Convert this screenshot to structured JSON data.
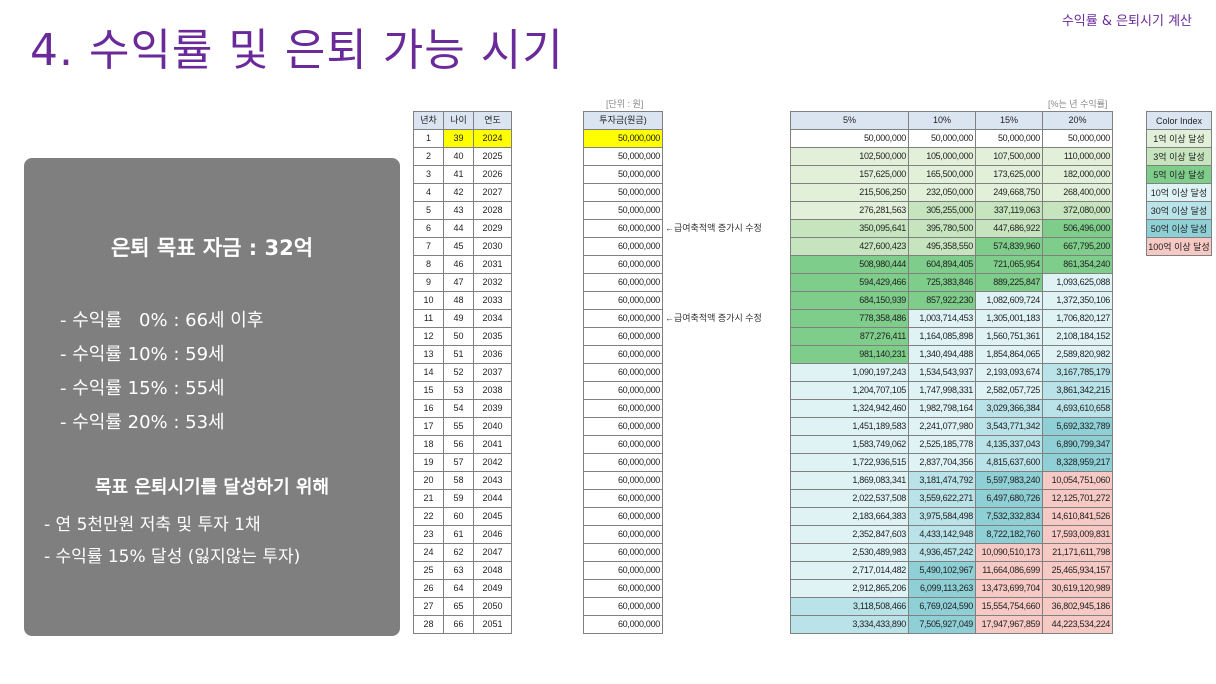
{
  "title": "4. 수익률 및 은퇴 가능 시기",
  "tag": "수익률 & 은퇴시기 계산",
  "summary": {
    "goal": "은퇴 목표 자금 : 32억",
    "rates": [
      "- 수익률   0% : 66세 이후",
      "- 수익률 10% : 59세",
      "- 수익률 15% : 55세",
      "- 수익률 20% : 53세"
    ],
    "plan_title": "목표 은퇴시기를 달성하기 위해",
    "plan": [
      "- 연 5천만원 저축 및 투자 1채",
      "- 수익률 15% 달성 (잃지않는 투자)"
    ]
  },
  "table_year": {
    "headers": [
      "년차",
      "나이",
      "연도"
    ],
    "highlight_row": 0,
    "highlight_color": "#ffff00",
    "rows": [
      [
        "1",
        "39",
        "2024"
      ],
      [
        "2",
        "40",
        "2025"
      ],
      [
        "3",
        "41",
        "2026"
      ],
      [
        "4",
        "42",
        "2027"
      ],
      [
        "5",
        "43",
        "2028"
      ],
      [
        "6",
        "44",
        "2029"
      ],
      [
        "7",
        "45",
        "2030"
      ],
      [
        "8",
        "46",
        "2031"
      ],
      [
        "9",
        "47",
        "2032"
      ],
      [
        "10",
        "48",
        "2033"
      ],
      [
        "11",
        "49",
        "2034"
      ],
      [
        "12",
        "50",
        "2035"
      ],
      [
        "13",
        "51",
        "2036"
      ],
      [
        "14",
        "52",
        "2037"
      ],
      [
        "15",
        "53",
        "2038"
      ],
      [
        "16",
        "54",
        "2039"
      ],
      [
        "17",
        "55",
        "2040"
      ],
      [
        "18",
        "56",
        "2041"
      ],
      [
        "19",
        "57",
        "2042"
      ],
      [
        "20",
        "58",
        "2043"
      ],
      [
        "21",
        "59",
        "2044"
      ],
      [
        "22",
        "60",
        "2045"
      ],
      [
        "23",
        "61",
        "2046"
      ],
      [
        "24",
        "62",
        "2047"
      ],
      [
        "25",
        "63",
        "2048"
      ],
      [
        "26",
        "64",
        "2049"
      ],
      [
        "27",
        "65",
        "2050"
      ],
      [
        "28",
        "66",
        "2051"
      ]
    ]
  },
  "table_invest": {
    "caption": "[단위 : 원]",
    "header": "투자금(원금)",
    "highlight_color": "#ffff00",
    "values": [
      "50,000,000",
      "50,000,000",
      "50,000,000",
      "50,000,000",
      "50,000,000",
      "60,000,000",
      "60,000,000",
      "60,000,000",
      "60,000,000",
      "60,000,000",
      "60,000,000",
      "60,000,000",
      "60,000,000",
      "60,000,000",
      "60,000,000",
      "60,000,000",
      "60,000,000",
      "60,000,000",
      "60,000,000",
      "60,000,000",
      "60,000,000",
      "60,000,000",
      "60,000,000",
      "60,000,000",
      "60,000,000",
      "60,000,000",
      "60,000,000",
      "60,000,000"
    ],
    "notes": [
      {
        "row": 5,
        "text": "←급여축적액 증가시 수정"
      },
      {
        "row": 10,
        "text": "←급여축적액 증가시 수정"
      }
    ]
  },
  "table_returns": {
    "caption": "[%는 년 수익률]",
    "headers": [
      "5%",
      "10%",
      "15%",
      "20%"
    ],
    "rows": [
      [
        "50,000,000",
        "50,000,000",
        "50,000,000",
        "50,000,000"
      ],
      [
        "102,500,000",
        "105,000,000",
        "107,500,000",
        "110,000,000"
      ],
      [
        "157,625,000",
        "165,500,000",
        "173,625,000",
        "182,000,000"
      ],
      [
        "215,506,250",
        "232,050,000",
        "249,668,750",
        "268,400,000"
      ],
      [
        "276,281,563",
        "305,255,000",
        "337,119,063",
        "372,080,000"
      ],
      [
        "350,095,641",
        "395,780,500",
        "447,686,922",
        "506,496,000"
      ],
      [
        "427,600,423",
        "495,358,550",
        "574,839,960",
        "667,795,200"
      ],
      [
        "508,980,444",
        "604,894,405",
        "721,065,954",
        "861,354,240"
      ],
      [
        "594,429,466",
        "725,383,846",
        "889,225,847",
        "1,093,625,088"
      ],
      [
        "684,150,939",
        "857,922,230",
        "1,082,609,724",
        "1,372,350,106"
      ],
      [
        "778,358,486",
        "1,003,714,453",
        "1,305,001,183",
        "1,706,820,127"
      ],
      [
        "877,276,411",
        "1,164,085,898",
        "1,560,751,361",
        "2,108,184,152"
      ],
      [
        "981,140,231",
        "1,340,494,488",
        "1,854,864,065",
        "2,589,820,982"
      ],
      [
        "1,090,197,243",
        "1,534,543,937",
        "2,193,093,674",
        "3,167,785,179"
      ],
      [
        "1,204,707,105",
        "1,747,998,331",
        "2,582,057,725",
        "3,861,342,215"
      ],
      [
        "1,324,942,460",
        "1,982,798,164",
        "3,029,366,384",
        "4,693,610,658"
      ],
      [
        "1,451,189,583",
        "2,241,077,980",
        "3,543,771,342",
        "5,692,332,789"
      ],
      [
        "1,583,749,062",
        "2,525,185,778",
        "4,135,337,043",
        "6,890,799,347"
      ],
      [
        "1,722,936,515",
        "2,837,704,356",
        "4,815,637,600",
        "8,328,959,217"
      ],
      [
        "1,869,083,341",
        "3,181,474,792",
        "5,597,983,240",
        "10,054,751,060"
      ],
      [
        "2,022,537,508",
        "3,559,622,271",
        "6,497,680,726",
        "12,125,701,272"
      ],
      [
        "2,183,664,383",
        "3,975,584,498",
        "7,532,332,834",
        "14,610,841,526"
      ],
      [
        "2,352,847,603",
        "4,433,142,948",
        "8,722,182,760",
        "17,593,009,831"
      ],
      [
        "2,530,489,983",
        "4,936,457,242",
        "10,090,510,173",
        "21,171,611,798"
      ],
      [
        "2,717,014,482",
        "5,490,102,967",
        "11,664,086,699",
        "25,465,934,157"
      ],
      [
        "2,912,865,206",
        "6,099,113,263",
        "13,473,699,704",
        "30,619,120,989"
      ],
      [
        "3,118,508,466",
        "6,769,024,590",
        "15,554,754,660",
        "36,802,945,186"
      ],
      [
        "3,334,433,890",
        "7,505,927,049",
        "17,947,967,859",
        "44,223,534,224"
      ]
    ]
  },
  "legend": {
    "header": "Color Index",
    "items": [
      {
        "label": "1억 이상 달성",
        "color": "#e2f0d9"
      },
      {
        "label": "3억 이상 달성",
        "color": "#c6e5bf"
      },
      {
        "label": "5억 이상 달성",
        "color": "#7fcd8b"
      },
      {
        "label": "10억 이상 달성",
        "color": "#dff3f5"
      },
      {
        "label": "30억 이상 달성",
        "color": "#b9e3e8"
      },
      {
        "label": "50억 이상 달성",
        "color": "#8fcfd6"
      },
      {
        "label": "100억 이상 달성",
        "color": "#f6c9c4"
      }
    ]
  }
}
